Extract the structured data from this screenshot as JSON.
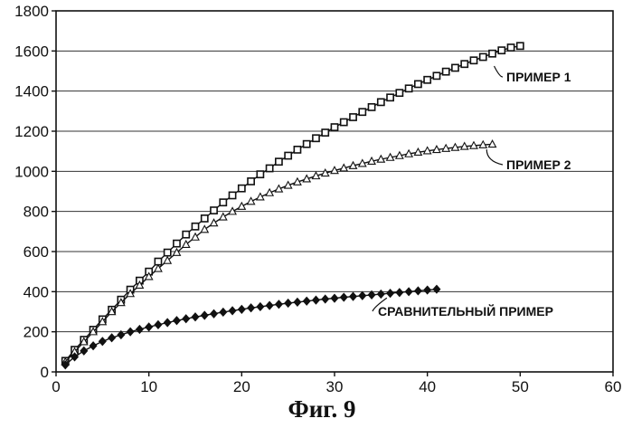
{
  "chart_data": {
    "type": "line",
    "title": "",
    "xlabel": "",
    "ylabel": "",
    "xlim": [
      0,
      60
    ],
    "ylim": [
      0,
      1800
    ],
    "grid": "horizontal",
    "x_ticks": [
      "0",
      "10",
      "20",
      "30",
      "40",
      "50",
      "60"
    ],
    "y_ticks": [
      "0",
      "200",
      "400",
      "600",
      "800",
      "1000",
      "1200",
      "1400",
      "1600",
      "1800"
    ],
    "series": [
      {
        "name": "ПРИМЕР 1",
        "marker": "square",
        "x": [
          1,
          2,
          3,
          4,
          5,
          6,
          7,
          8,
          9,
          10,
          11,
          12,
          13,
          14,
          15,
          16,
          17,
          18,
          19,
          20,
          21,
          22,
          23,
          24,
          25,
          26,
          27,
          28,
          29,
          30,
          31,
          32,
          33,
          34,
          35,
          36,
          37,
          38,
          39,
          40,
          41,
          42,
          43,
          44,
          45,
          46,
          47,
          48,
          49,
          50
        ],
        "values": [
          55,
          110,
          160,
          210,
          262,
          310,
          360,
          410,
          455,
          500,
          550,
          595,
          640,
          685,
          725,
          765,
          805,
          845,
          880,
          915,
          950,
          985,
          1015,
          1048,
          1078,
          1108,
          1136,
          1165,
          1193,
          1220,
          1245,
          1270,
          1296,
          1320,
          1345,
          1368,
          1391,
          1413,
          1435,
          1456,
          1476,
          1497,
          1516,
          1535,
          1553,
          1570,
          1587,
          1603,
          1617,
          1625
        ]
      },
      {
        "name": "ПРИМЕР 2",
        "marker": "triangle",
        "x": [
          1,
          2,
          3,
          4,
          5,
          6,
          7,
          8,
          9,
          10,
          11,
          12,
          13,
          14,
          15,
          16,
          17,
          18,
          19,
          20,
          21,
          22,
          23,
          24,
          25,
          26,
          27,
          28,
          29,
          30,
          31,
          32,
          33,
          34,
          35,
          36,
          37,
          38,
          39,
          40,
          41,
          42,
          43,
          44,
          45,
          46,
          47
        ],
        "values": [
          50,
          100,
          150,
          200,
          250,
          300,
          345,
          390,
          432,
          475,
          515,
          555,
          595,
          635,
          672,
          710,
          742,
          772,
          800,
          825,
          850,
          872,
          893,
          912,
          930,
          947,
          962,
          977,
          991,
          1004,
          1016,
          1028,
          1039,
          1050,
          1060,
          1069,
          1078,
          1087,
          1095,
          1102,
          1108,
          1114,
          1119,
          1124,
          1128,
          1132,
          1135
        ]
      },
      {
        "name": "СРАВНИТЕЛЬНЫЙ ПРИМЕР",
        "marker": "diamond",
        "x": [
          1,
          2,
          3,
          4,
          5,
          6,
          7,
          8,
          9,
          10,
          11,
          12,
          13,
          14,
          15,
          16,
          17,
          18,
          19,
          20,
          21,
          22,
          23,
          24,
          25,
          26,
          27,
          28,
          29,
          30,
          31,
          32,
          33,
          34,
          35,
          36,
          37,
          38,
          39,
          40,
          41
        ],
        "values": [
          35,
          75,
          105,
          130,
          152,
          170,
          185,
          200,
          212,
          224,
          235,
          246,
          256,
          265,
          274,
          282,
          290,
          298,
          305,
          312,
          319,
          325,
          331,
          337,
          343,
          348,
          353,
          358,
          363,
          367,
          372,
          376,
          380,
          384,
          388,
          392,
          396,
          400,
          404,
          408,
          412
        ]
      }
    ],
    "caption": "Фиг. 9",
    "colors": {
      "ink": "#111111",
      "grid": "#333333",
      "background": "#ffffff"
    }
  }
}
